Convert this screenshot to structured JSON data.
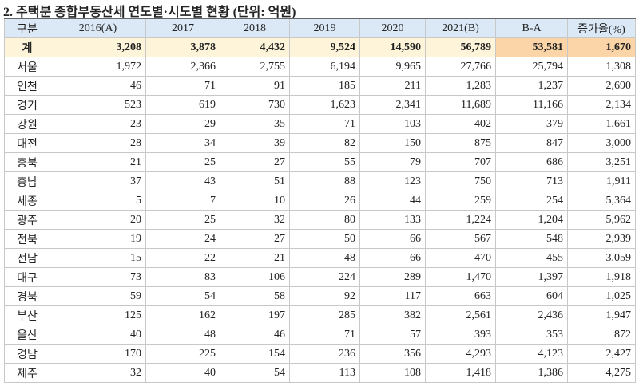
{
  "title": "2. 주택분 종합부동산세 연도별·시도별 현황 (단위: 억원)",
  "table": {
    "header": [
      "구분",
      "2016(A)",
      "2017",
      "2018",
      "2019",
      "2020",
      "2021(B)",
      "B-A",
      "증가율(%)"
    ],
    "total": [
      "계",
      "3,208",
      "3,878",
      "4,432",
      "9,524",
      "14,590",
      "56,789",
      "53,581",
      "1,670"
    ],
    "rows": [
      [
        "서울",
        "1,972",
        "2,366",
        "2,755",
        "6,194",
        "9,965",
        "27,766",
        "25,794",
        "1,308"
      ],
      [
        "인천",
        "46",
        "71",
        "91",
        "185",
        "211",
        "1,283",
        "1,237",
        "2,690"
      ],
      [
        "경기",
        "523",
        "619",
        "730",
        "1,623",
        "2,341",
        "11,689",
        "11,166",
        "2,134"
      ],
      [
        "강원",
        "23",
        "29",
        "35",
        "71",
        "103",
        "402",
        "379",
        "1,661"
      ],
      [
        "대전",
        "28",
        "34",
        "39",
        "82",
        "150",
        "875",
        "847",
        "3,000"
      ],
      [
        "충북",
        "21",
        "25",
        "27",
        "55",
        "79",
        "707",
        "686",
        "3,251"
      ],
      [
        "충남",
        "37",
        "43",
        "51",
        "88",
        "123",
        "750",
        "713",
        "1,911"
      ],
      [
        "세종",
        "5",
        "7",
        "10",
        "26",
        "44",
        "259",
        "254",
        "5,364"
      ],
      [
        "광주",
        "20",
        "25",
        "32",
        "80",
        "133",
        "1,224",
        "1,204",
        "5,962"
      ],
      [
        "전북",
        "19",
        "24",
        "27",
        "50",
        "66",
        "567",
        "548",
        "2,939"
      ],
      [
        "전남",
        "15",
        "22",
        "21",
        "48",
        "66",
        "470",
        "455",
        "3,059"
      ],
      [
        "대구",
        "73",
        "83",
        "106",
        "224",
        "289",
        "1,470",
        "1,397",
        "1,918"
      ],
      [
        "경북",
        "59",
        "54",
        "58",
        "92",
        "117",
        "663",
        "604",
        "1,025"
      ],
      [
        "부산",
        "125",
        "162",
        "197",
        "285",
        "382",
        "2,561",
        "2,436",
        "1,947"
      ],
      [
        "울산",
        "40",
        "48",
        "46",
        "71",
        "57",
        "393",
        "353",
        "872"
      ],
      [
        "경남",
        "170",
        "225",
        "154",
        "236",
        "356",
        "4,293",
        "4,123",
        "2,427"
      ],
      [
        "제주",
        "32",
        "40",
        "54",
        "113",
        "108",
        "1,418",
        "1,386",
        "4,275"
      ]
    ]
  }
}
